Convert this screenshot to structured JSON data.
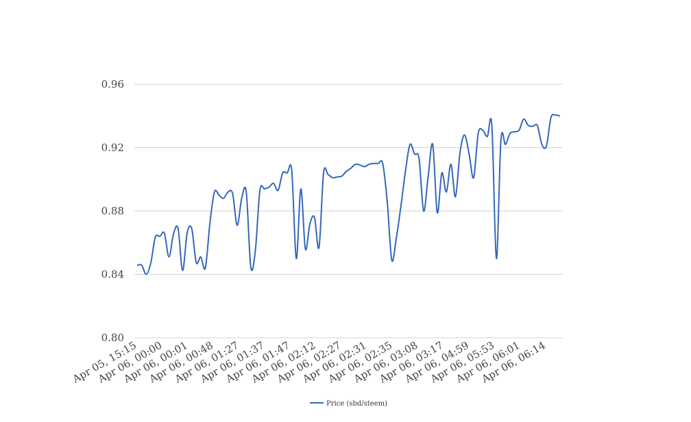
{
  "chart_data": {
    "type": "line",
    "title": "",
    "xlabel": "",
    "ylabel": "",
    "ylim": [
      0.8,
      0.96
    ],
    "yticks": [
      "0.80",
      "0.84",
      "0.88",
      "0.92",
      "0.96"
    ],
    "xtick_labels": [
      "Apr 05, 15:15",
      "Apr 06, 00:00",
      "Apr 06, 00:01",
      "Apr 06, 00:48",
      "Apr 06, 01:27",
      "Apr 06, 01:37",
      "Apr 06, 01:47",
      "Apr 06, 02:12",
      "Apr 06, 02:27",
      "Apr 06, 02:31",
      "Apr 06, 02:35",
      "Apr 06, 03:08",
      "Apr 06, 03:17",
      "Apr 06, 04:59",
      "Apr 06, 05:53",
      "Apr 06, 06:01",
      "Apr 06, 06:14"
    ],
    "grid": true,
    "legend_position": "bottom",
    "series": [
      {
        "name": "Price (sbd/steem)",
        "color": "#3366bb",
        "values": [
          0.8457,
          0.8458,
          0.84,
          0.847,
          0.8635,
          0.864,
          0.866,
          0.851,
          0.8655,
          0.869,
          0.8425,
          0.866,
          0.869,
          0.8475,
          0.851,
          0.844,
          0.872,
          0.892,
          0.89,
          0.888,
          0.892,
          0.891,
          0.871,
          0.888,
          0.892,
          0.8445,
          0.855,
          0.893,
          0.894,
          0.895,
          0.8975,
          0.893,
          0.904,
          0.904,
          0.9055,
          0.85,
          0.894,
          0.856,
          0.872,
          0.876,
          0.857,
          0.904,
          0.903,
          0.901,
          0.9015,
          0.902,
          0.905,
          0.907,
          0.9095,
          0.909,
          0.908,
          0.9095,
          0.91,
          0.91,
          0.91,
          0.886,
          0.849,
          0.863,
          0.883,
          0.905,
          0.922,
          0.916,
          0.913,
          0.88,
          0.902,
          0.922,
          0.879,
          0.904,
          0.892,
          0.9095,
          0.889,
          0.917,
          0.928,
          0.916,
          0.901,
          0.929,
          0.931,
          0.927,
          0.934,
          0.85,
          0.925,
          0.922,
          0.929,
          0.93,
          0.931,
          0.938,
          0.934,
          0.9335,
          0.934,
          0.922,
          0.921,
          0.939,
          0.9405,
          0.94
        ]
      }
    ]
  }
}
